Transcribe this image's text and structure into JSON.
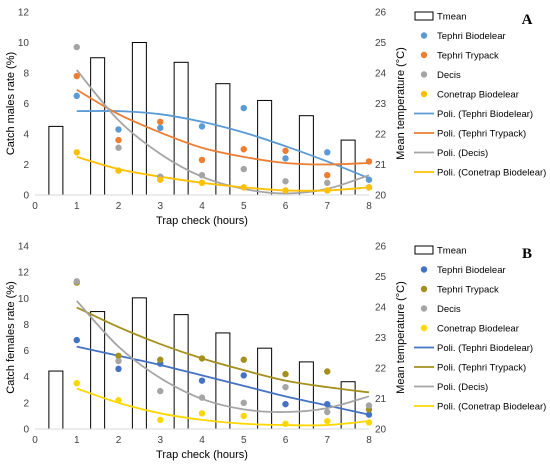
{
  "chart_data": [
    {
      "type": "bar+scatter+line",
      "panel_label": "A",
      "xlabel": "Trap check (hours)",
      "ylabel": "Catch males rate (%)",
      "y2label": "Mean temperature (°C)",
      "xlim": [
        0,
        8
      ],
      "xticks": [
        0,
        1,
        2,
        3,
        4,
        5,
        6,
        7,
        8
      ],
      "ylim": [
        0,
        12
      ],
      "yticks": [
        0,
        2,
        4,
        6,
        8,
        10,
        12
      ],
      "y2lim": [
        20,
        26
      ],
      "y2ticks": [
        20,
        21,
        22,
        23,
        24,
        25,
        26
      ],
      "legend_position": "right",
      "bars": {
        "name": "Tmean",
        "x": [
          0.5,
          1.5,
          2.5,
          3.5,
          4.5,
          5.5,
          6.5,
          7.5
        ],
        "values": [
          22.25,
          24.5,
          25.0,
          24.35,
          23.65,
          23.1,
          22.6,
          21.8
        ]
      },
      "series": [
        {
          "name": "Tephri Biodelear",
          "color": "#5B9BD5",
          "x": [
            1,
            2,
            3,
            4,
            5,
            6,
            7,
            8
          ],
          "values": [
            6.5,
            4.3,
            4.4,
            4.5,
            5.7,
            2.4,
            2.8,
            1.0
          ]
        },
        {
          "name": "Tephri Trypack",
          "color": "#ED7D31",
          "x": [
            1,
            2,
            3,
            4,
            5,
            6,
            7,
            8
          ],
          "values": [
            7.8,
            3.6,
            4.8,
            2.3,
            3.0,
            2.9,
            1.3,
            2.2
          ]
        },
        {
          "name": "Decis",
          "color": "#A5A5A5",
          "x": [
            1,
            2,
            3,
            4,
            5,
            6,
            7,
            8
          ],
          "values": [
            9.7,
            3.1,
            1.2,
            1.3,
            1.7,
            0.9,
            0.8,
            0.5
          ]
        },
        {
          "name": "Conetrap Biodelear",
          "color": "#FFC000",
          "x": [
            1,
            2,
            3,
            4,
            5,
            6,
            7,
            8
          ],
          "values": [
            2.8,
            1.6,
            1.0,
            0.8,
            0.5,
            0.3,
            0.3,
            0.5
          ]
        }
      ],
      "trendlines": [
        {
          "name": "Poli. (Tephri Biodelear)",
          "color": "#5B9BD5",
          "x": [
            1,
            2,
            3,
            4,
            5,
            6,
            7,
            8
          ],
          "values": [
            5.5,
            5.5,
            5.3,
            4.8,
            4.1,
            3.2,
            2.2,
            1.1
          ]
        },
        {
          "name": "Poli. (Tephri Trypack)",
          "color": "#ED7D31",
          "x": [
            1,
            2,
            3,
            4,
            5,
            6,
            7,
            8
          ],
          "values": [
            6.9,
            5.3,
            4.1,
            3.1,
            2.5,
            2.1,
            2.0,
            2.1
          ]
        },
        {
          "name": "Poli. (Decis)",
          "color": "#A5A5A5",
          "x": [
            1,
            2,
            3,
            4,
            5,
            6,
            7,
            8
          ],
          "values": [
            8.2,
            4.9,
            2.7,
            1.2,
            0.4,
            0.1,
            0.4,
            1.3
          ]
        },
        {
          "name": "Poli. (Conetrap Biodelear)",
          "color": "#FFC000",
          "x": [
            1,
            2,
            3,
            4,
            5,
            6,
            7,
            8
          ],
          "values": [
            2.5,
            1.7,
            1.2,
            0.8,
            0.5,
            0.3,
            0.3,
            0.5
          ]
        }
      ]
    },
    {
      "type": "bar+scatter+line",
      "panel_label": "B",
      "xlabel": "Trap check (hours)",
      "ylabel": "Catch females rate (%)",
      "y2label": "Mean temperature (°C)",
      "xlim": [
        0,
        8
      ],
      "xticks": [
        0,
        1,
        2,
        3,
        4,
        5,
        6,
        7,
        8
      ],
      "ylim": [
        0,
        14
      ],
      "yticks": [
        0,
        2,
        4,
        6,
        8,
        10,
        12,
        14
      ],
      "y2lim": [
        20,
        26
      ],
      "y2ticks": [
        20,
        21,
        22,
        23,
        24,
        25,
        26
      ],
      "legend_position": "right",
      "bars": {
        "name": "Tmean",
        "x": [
          0.5,
          1.5,
          2.5,
          3.5,
          4.5,
          5.5,
          6.5,
          7.5
        ],
        "values": [
          21.9,
          23.85,
          24.3,
          23.75,
          23.15,
          22.65,
          22.2,
          21.55
        ]
      },
      "series": [
        {
          "name": "Tephri Biodelear",
          "color": "#4472C4",
          "x": [
            1,
            2,
            3,
            4,
            5,
            6,
            7,
            8
          ],
          "values": [
            6.8,
            4.6,
            5.0,
            3.7,
            4.1,
            1.9,
            1.9,
            1.1
          ]
        },
        {
          "name": "Tephri Trypack",
          "color": "#A5901E",
          "x": [
            1,
            2,
            3,
            4,
            5,
            6,
            7,
            8
          ],
          "values": [
            11.2,
            5.6,
            5.3,
            5.4,
            5.3,
            4.2,
            4.4,
            1.5
          ]
        },
        {
          "name": "Decis",
          "color": "#A5A5A5",
          "x": [
            1,
            2,
            3,
            4,
            5,
            6,
            7,
            8
          ],
          "values": [
            11.3,
            5.2,
            2.9,
            2.4,
            2.0,
            3.2,
            1.3,
            1.8
          ]
        },
        {
          "name": "Conetrap Biodelear",
          "color": "#FFD700",
          "x": [
            1,
            2,
            3,
            4,
            5,
            6,
            7,
            8
          ],
          "values": [
            3.5,
            2.2,
            0.7,
            1.2,
            1.0,
            0.4,
            0.6,
            0.5
          ]
        }
      ],
      "trendlines": [
        {
          "name": "Poli. (Tephri Biodelear)",
          "color": "#4472C4",
          "x": [
            1,
            2,
            3,
            4,
            5,
            6,
            7,
            8
          ],
          "values": [
            6.3,
            5.6,
            4.9,
            4.1,
            3.3,
            2.5,
            1.8,
            1.1
          ]
        },
        {
          "name": "Poli. (Tephri Trypack)",
          "color": "#A5901E",
          "x": [
            1,
            2,
            3,
            4,
            5,
            6,
            7,
            8
          ],
          "values": [
            9.3,
            7.8,
            6.5,
            5.4,
            4.5,
            3.7,
            3.2,
            2.8
          ]
        },
        {
          "name": "Poli. (Decis)",
          "color": "#A5A5A5",
          "x": [
            1,
            2,
            3,
            4,
            5,
            6,
            7,
            8
          ],
          "values": [
            9.8,
            6.3,
            3.9,
            2.3,
            1.5,
            1.3,
            1.6,
            2.5
          ]
        },
        {
          "name": "Poli. (Conetrap Biodelear)",
          "color": "#FFD700",
          "x": [
            1,
            2,
            3,
            4,
            5,
            6,
            7,
            8
          ],
          "values": [
            3.1,
            2.0,
            1.2,
            0.7,
            0.4,
            0.3,
            0.3,
            0.6
          ]
        }
      ]
    }
  ]
}
